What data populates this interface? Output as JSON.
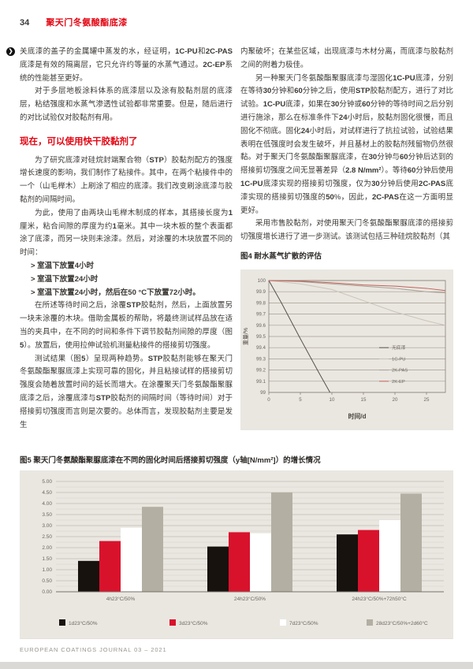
{
  "page": {
    "number": "34",
    "title": "聚天门冬氨酸酯底漆",
    "footer": "EUROPEAN COATINGS JOURNAL 03 – 2021"
  },
  "colors": {
    "accent": "#e30613",
    "figure_background": "#eae7e1"
  },
  "article": {
    "left_column": {
      "p1": "关底漆的盖子的金属罐中蒸发的水，经证明，**1C-PU**和**2C-PAS**底漆是有效的隔离层，它只允许约等量的水蒸气通过。**2C-EP**系统的性能甚至更好。",
      "p2": "对于多层地板涂料体系的底漆层以及涂有胶黏剂层的底漆层，粘结强度和水蒸气渗透性试验都非常重要。但是，随后进行的对比试验仅对胶黏剂有用。",
      "heading": "现在，可以使用快干胶黏剂了",
      "p3": "为了研究底漆对硅烷封端聚合物（**STP**）胶黏剂配方的强度增长速度的影响，我们制作了粘接件。其中，在两个粘接件中的一个（山毛榉木）上刷涂了相应的底漆。我们改变刷涂底漆与胶黏剂的间隔时间。",
      "p4": "为此，使用了由两块山毛榉木制成的样本，其搭接长度为**1**厘米，粘合间隙的厚度为约**1**毫米。其中一块木板的整个表面都涂了底漆，而另一块则未涂漆。然后，对涂覆的木块放置不同的时间：",
      "list": [
        "> 室温下放置**4**小时",
        "> 室温下放置**24**小时",
        "> 室温下放置**24**小时，然后在**50 °C**下放置**72**小时。"
      ],
      "p5": "在所述等待时间之后，涂覆**STP**胶黏剂，然后，上面放置另一块未涂覆的木块。借助金属板的帮助，将最终测试样品放在适当的夹具中，在不同的时间和条件下调节胶黏剂间隙的厚度（图**5**）。放置后，使用拉伸试验机测量粘接件的搭接剪切强度。",
      "p6": "测试结果（图**5**）呈现两种趋势。**STP**胶黏剂能够在聚天门冬氨酸酯聚脲底漆上实现可靠的固化，并且粘接试样的搭接剪切强度会随着放置时间的延长而增大。在涂覆聚天门冬氨酸酯聚脲底漆之后，涂覆底漆与**STP**胶黏剂的间隔时间（等待时间）对于搭接剪切强度而言则是次要的。总体而言，发现胶黏剂主要是发生"
    },
    "right_column": {
      "p1": "内聚破坏；在某些区域，出现底漆与木材分离，而底漆与胶黏剂之间的附着力极佳。",
      "p2": "另一种聚天门冬氨酸酯聚脲底漆与湿固化**1C-PU**底漆，分别在等待**30**分钟和**60**分钟之后，使用**STP**胶黏剂配方，进行了对比试验。**1C-PU**底漆，如果在**30**分钟或**60**分钟的等待时间之后分别进行施涂，那么在标准条件下**24**小时后，胶黏剂固化很慢，而且固化不彻底。固化**24**小时后，对试样进行了抗拉试验，试验结果表明在低强度时会发生破坏，并且基材上的胶黏剂残留物仍然很黏。对于聚天门冬氨酸酯聚脲底漆，在**30**分钟与**60**分钟后达到的搭接剪切强度之间无显著差异（**2.8 N/mm²**）。等待**60**分钟后使用**1C-PU**底漆实现的搭接剪切强度，仅为**30**分钟后使用**2C-PAS**底漆实现的搭接剪切强度的**50**%，因此，**2C-PAS**在这一方面明显更好。",
      "p3": "采用市售胶黏剂，对使用聚天门冬氨酸酯聚脲底漆的搭接剪切强度增长进行了进一步测试。该测试包括三种硅烷胶黏剂（其"
    }
  },
  "chart_data": [
    {
      "type": "line",
      "title": "图4 耐水蒸气扩散的评估",
      "xlabel": "时间/d",
      "ylabel": "重量/%",
      "xlim": [
        0,
        28
      ],
      "ylim": [
        99,
        100
      ],
      "xticks": [
        0,
        5,
        10,
        15,
        20,
        25
      ],
      "yticks": [
        100,
        99.9,
        99.8,
        99.7,
        99.6,
        99.5,
        99.4,
        99.3,
        99.2,
        99.1,
        99
      ],
      "grid": true,
      "legend_position": "inside-right",
      "series": [
        {
          "name": "无底漆",
          "color": "#57514b",
          "x": [
            0,
            2,
            5,
            8,
            9.7
          ],
          "y": [
            100,
            99.8,
            99.48,
            99.17,
            99.0
          ]
        },
        {
          "name": "1C-PU",
          "color": "#cbc4b8",
          "x": [
            0,
            5,
            10,
            15,
            20,
            25,
            28
          ],
          "y": [
            100,
            99.97,
            99.92,
            99.82,
            99.72,
            99.64,
            99.6
          ]
        },
        {
          "name": "2K-PAS",
          "color": "#a8a196",
          "x": [
            0,
            5,
            10,
            15,
            20,
            25,
            28
          ],
          "y": [
            100,
            99.99,
            99.97,
            99.95,
            99.93,
            99.9,
            99.89
          ]
        },
        {
          "name": "2K-EP",
          "color": "#c2625a",
          "x": [
            0,
            5,
            10,
            15,
            20,
            25,
            28
          ],
          "y": [
            100,
            99.995,
            99.98,
            99.96,
            99.95,
            99.93,
            99.91
          ]
        }
      ]
    },
    {
      "type": "bar",
      "title": "图5 聚天门冬氨酸酯聚脲底漆在不同的固化时间后搭接剪切强度（y轴[N/mm²]）的增长情况",
      "ylabel": "N/mm²",
      "ylim": [
        0,
        5
      ],
      "ytick_step": 0.5,
      "grid": true,
      "legend_position": "bottom",
      "categories": [
        "4h23°C/50%",
        "24h23°C/50%",
        "24h23°C/50%+72h50°C"
      ],
      "series": [
        {
          "name": "1d23°C/50%",
          "color": "#17120e",
          "values": [
            1.4,
            2.05,
            2.6
          ]
        },
        {
          "name": "3d23°C/50%",
          "color": "#d9122c",
          "values": [
            2.3,
            2.7,
            2.8
          ]
        },
        {
          "name": "7d23°C/50%",
          "color": "#ffffff",
          "values": [
            2.9,
            2.65,
            3.25
          ]
        },
        {
          "name": "28d23°C/50%+2d60°C",
          "color": "#b3afa2",
          "values": [
            3.85,
            4.5,
            4.45
          ]
        }
      ]
    }
  ]
}
